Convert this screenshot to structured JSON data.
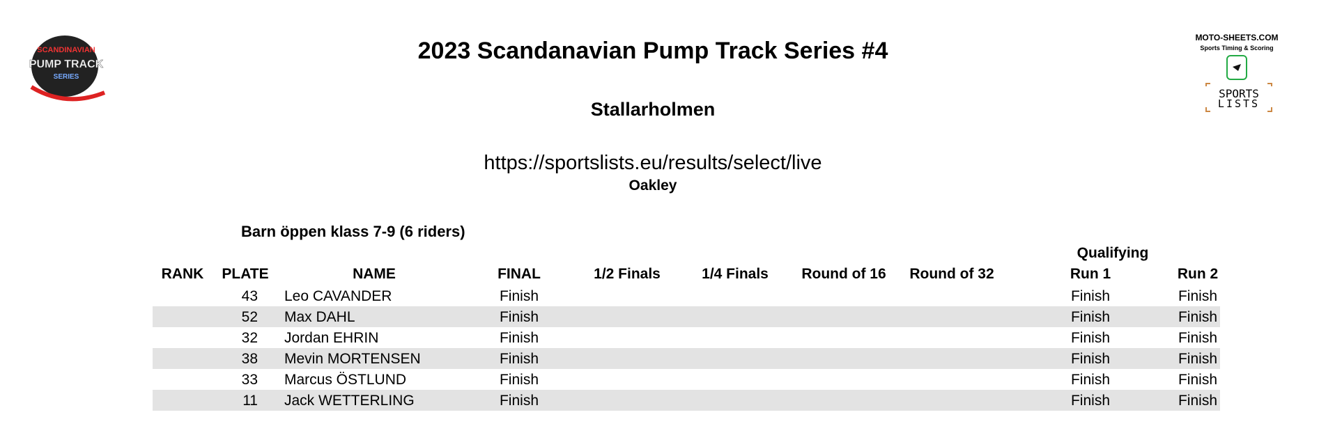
{
  "logos": {
    "left": [
      "SCANDINAVIAN",
      "PUMP TRACK",
      "SERIES"
    ],
    "right": [
      "MOTO-SHEETS.COM",
      "Sports Timing & Scoring",
      "SPORTS",
      "LISTS"
    ]
  },
  "header": {
    "title": "2023 Scandanavian Pump Track Series #4",
    "subtitle": "Stallarholmen",
    "url": "https://sportslists.eu/results/select/live",
    "sponsor": "Oakley"
  },
  "section": {
    "title": "Barn öppen klass 7-9 (6 riders)"
  },
  "table": {
    "group_header": "Qualifying",
    "columns": [
      "RANK",
      "PLATE",
      "NAME",
      "FINAL",
      "1/2 Finals",
      "1/4 Finals",
      "Round of 16",
      "Round of 32",
      "Run 1",
      "Run 2"
    ],
    "rows": [
      [
        null,
        43,
        "Leo CAVANDER",
        "Finish",
        null,
        null,
        null,
        null,
        "Finish",
        "Finish"
      ],
      [
        null,
        52,
        "Max DAHL",
        "Finish",
        null,
        null,
        null,
        null,
        "Finish",
        "Finish"
      ],
      [
        null,
        32,
        "Jordan EHRIN",
        "Finish",
        null,
        null,
        null,
        null,
        "Finish",
        "Finish"
      ],
      [
        null,
        38,
        "Mevin MORTENSEN",
        "Finish",
        null,
        null,
        null,
        null,
        "Finish",
        "Finish"
      ],
      [
        null,
        33,
        "Marcus ÖSTLUND",
        "Finish",
        null,
        null,
        null,
        null,
        "Finish",
        "Finish"
      ],
      [
        null,
        11,
        "Jack WETTERLING",
        "Finish",
        null,
        null,
        null,
        null,
        "Finish",
        "Finish"
      ]
    ]
  }
}
